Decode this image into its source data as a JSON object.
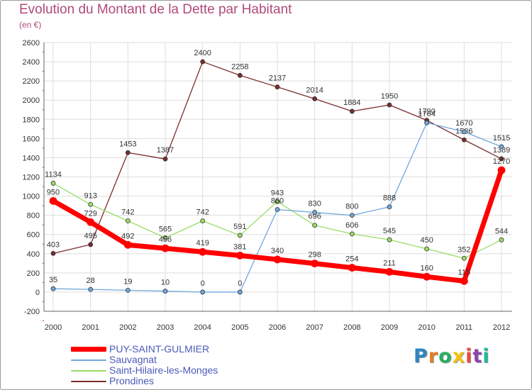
{
  "header": {
    "title": "Evolution du Montant de la Dette par Habitant",
    "subtitle": "(en €)"
  },
  "brand": {
    "letters": [
      "P",
      "r",
      "o",
      "x",
      "i",
      "t",
      "i"
    ],
    "colors": [
      "#2e86c1",
      "#e67e22",
      "#27ae60",
      "#f1c40f",
      "#e74c3c",
      "#8e44ad",
      "#1abc9c"
    ]
  },
  "chart_data": {
    "type": "line",
    "title": "Evolution du Montant de la Dette par Habitant",
    "subtitle": "(en €)",
    "xlabel": "",
    "ylabel": "",
    "categories": [
      "2000",
      "2001",
      "2002",
      "2003",
      "2004",
      "2005",
      "2006",
      "2007",
      "2008",
      "2009",
      "2010",
      "2011",
      "2012"
    ],
    "ylim": [
      -200,
      2600
    ],
    "yticks": [
      -200,
      0,
      200,
      400,
      600,
      800,
      1000,
      1200,
      1400,
      1600,
      1800,
      2000,
      2200,
      2400,
      2600
    ],
    "grid": true,
    "legend_position": "bottom-left",
    "series": [
      {
        "name": "PUY-SAINT-GULMIER",
        "color": "#ff0000",
        "width": 7,
        "values": [
          950,
          729,
          492,
          456,
          419,
          381,
          340,
          298,
          254,
          211,
          160,
          115,
          1270
        ],
        "labels": [
          "950",
          "729",
          "492",
          "456",
          "419",
          "381",
          "340",
          "298",
          "254",
          "211",
          "160",
          "115",
          "1270"
        ]
      },
      {
        "name": "Sauvagnat",
        "color": "#6fa8dc",
        "width": 1.3,
        "values": [
          35,
          28,
          19,
          10,
          0,
          0,
          860,
          830,
          800,
          888,
          1764,
          1670,
          1515
        ],
        "labels": [
          "35",
          "28",
          "19",
          "10",
          "0",
          "0",
          "860",
          "830",
          "800",
          "888",
          "1764",
          "1670",
          "1515"
        ]
      },
      {
        "name": "Saint-Hilaire-les-Monges",
        "color": "#99dd66",
        "width": 1.3,
        "values": [
          1134,
          913,
          742,
          565,
          742,
          591,
          943,
          696,
          606,
          545,
          450,
          352,
          544
        ],
        "labels": [
          "1134",
          "913",
          "742",
          "565",
          "742",
          "591",
          "943",
          "696",
          "606",
          "545",
          "450",
          "352",
          "544"
        ]
      },
      {
        "name": "Prondines",
        "color": "#7b2c2c",
        "width": 1.3,
        "values": [
          403,
          495,
          1453,
          1387,
          2400,
          2258,
          2137,
          2014,
          1884,
          1950,
          1790,
          1586,
          1389
        ],
        "labels": [
          "403",
          "495",
          "1453",
          "1387",
          "2400",
          "2258",
          "2137",
          "2014",
          "1884",
          "1950",
          "1790",
          "1586",
          "1389"
        ]
      }
    ]
  }
}
